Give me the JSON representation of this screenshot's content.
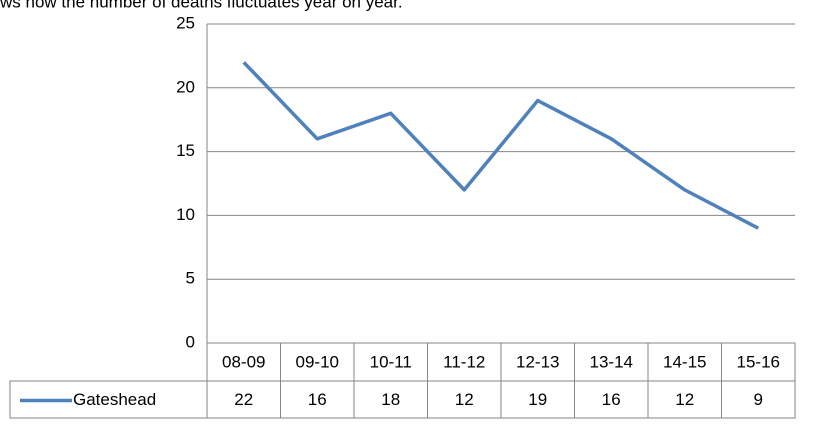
{
  "chart_data": {
    "type": "line",
    "caption": "ws how the number of deaths fluctuates year on year.",
    "categories": [
      "08-09",
      "09-10",
      "10-11",
      "11-12",
      "12-13",
      "13-14",
      "14-15",
      "15-16"
    ],
    "series": [
      {
        "name": "Gateshead",
        "color": "#4f81bd",
        "values": [
          22,
          16,
          18,
          12,
          19,
          16,
          12,
          9
        ]
      }
    ],
    "ylim": [
      0,
      25
    ],
    "yticks": [
      0,
      5,
      10,
      15,
      20,
      25
    ],
    "grid": true,
    "data_table": true
  }
}
